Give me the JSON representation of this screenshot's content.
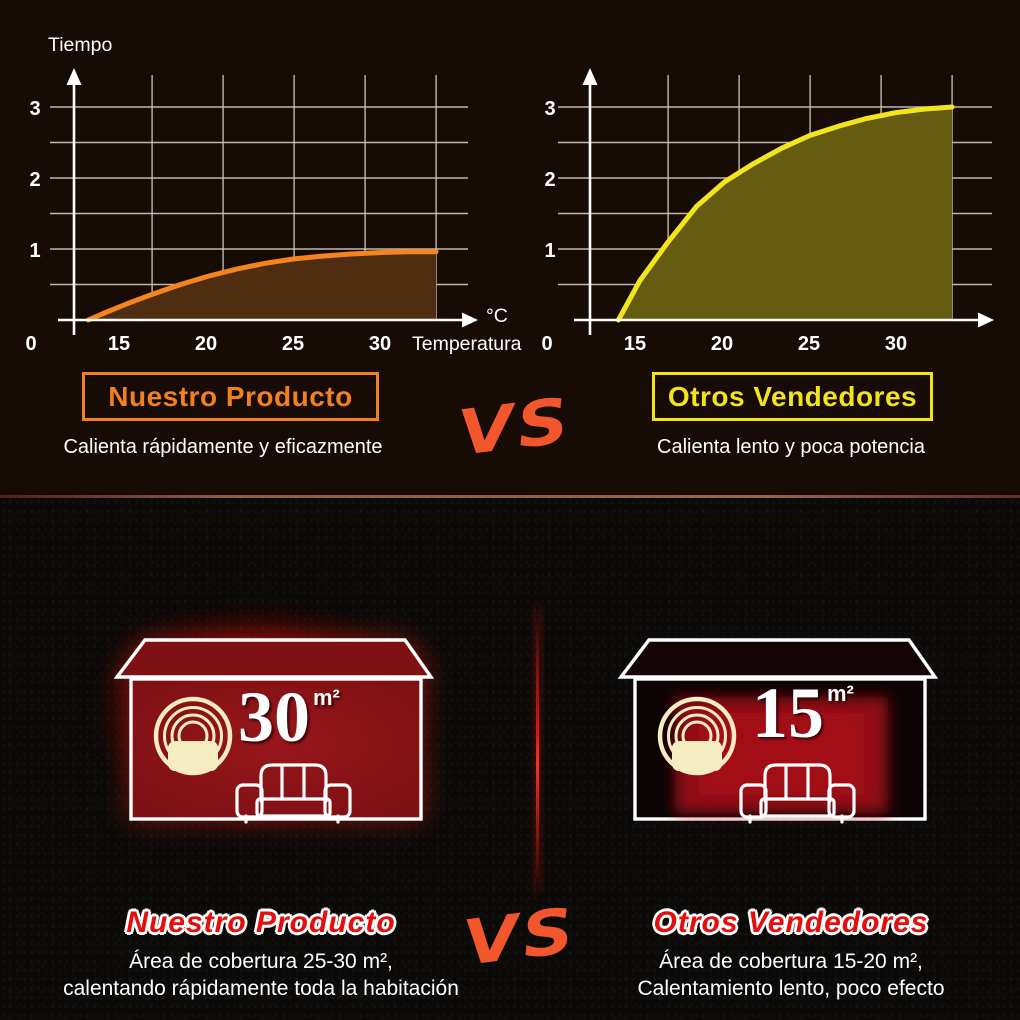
{
  "top_section": {
    "left_badge": {
      "label": "Nuestro Producto",
      "caption": "Calienta rápidamente y eficazmente"
    },
    "right_badge": {
      "label": "Otros Vendedores",
      "caption": "Calienta lento y poca potencia"
    },
    "vs_label": "VS"
  },
  "chart_data": [
    {
      "type": "area",
      "title": "Nuestro Producto",
      "ylabel": "Tiempo",
      "xlabel": "Temperatura",
      "x_unit": "°C",
      "x_ticks": [
        15,
        20,
        25,
        30
      ],
      "y_ticks": [
        1,
        2,
        3
      ],
      "origin_tick": "0",
      "xlim": [
        9.5,
        35
      ],
      "ylim": [
        0,
        3.5
      ],
      "grid": true,
      "legend": "none",
      "line_color": "#f5831e",
      "fill_color": "#4e2d11",
      "series": [
        {
          "name": "Nuestro Producto",
          "points": [
            [
              10.5,
              0
            ],
            [
              12,
              0.13
            ],
            [
              13.5,
              0.25
            ],
            [
              15,
              0.36
            ],
            [
              17,
              0.5
            ],
            [
              19,
              0.62
            ],
            [
              21,
              0.72
            ],
            [
              23,
              0.8
            ],
            [
              25,
              0.86
            ],
            [
              27,
              0.9
            ],
            [
              29,
              0.93
            ],
            [
              31,
              0.95
            ],
            [
              33,
              0.96
            ],
            [
              35,
              0.96
            ]
          ]
        }
      ]
    },
    {
      "type": "area",
      "title": "Otros Vendedores",
      "ylabel": "",
      "xlabel": "",
      "x_unit": "",
      "x_ticks": [
        15,
        20,
        25,
        30
      ],
      "y_ticks": [
        1,
        2,
        3
      ],
      "origin_tick": "0",
      "xlim": [
        9.5,
        35
      ],
      "ylim": [
        0,
        3.5
      ],
      "grid": true,
      "legend": "none",
      "line_color": "#f3e51d",
      "fill_color": "#665c11",
      "series": [
        {
          "name": "Otros Vendedores",
          "points": [
            [
              11.5,
              0
            ],
            [
              13,
              0.55
            ],
            [
              15,
              1.1
            ],
            [
              17,
              1.6
            ],
            [
              19,
              1.95
            ],
            [
              21,
              2.2
            ],
            [
              23,
              2.42
            ],
            [
              25,
              2.6
            ],
            [
              27,
              2.73
            ],
            [
              29,
              2.84
            ],
            [
              31,
              2.92
            ],
            [
              33,
              2.97
            ],
            [
              35,
              3.0
            ]
          ]
        }
      ]
    }
  ],
  "bottom_section": {
    "left_house": {
      "area_value": "30",
      "area_unit": "m²",
      "title": "Nuestro Producto",
      "caption_line1": "Área de cobertura 25-30 m²,",
      "caption_line2": "calentando rápidamente toda la habitación"
    },
    "right_house": {
      "area_value": "15",
      "area_unit": "m²",
      "title": "Otros Vendedores",
      "caption_line1": "Área de cobertura 15-20 m²,",
      "caption_line2": "Calentamiento lento, poco efecto"
    },
    "vs_label": "VS"
  },
  "colors": {
    "our_accent": "#f08020",
    "other_accent": "#f2e31d",
    "vs_orange": "#f1562d",
    "alert_red": "#e60d0d",
    "house_red": "#8c1217",
    "heater_cream": "#f6ecc2",
    "grid_gray": "#cdc7c1",
    "divider_brown": "#99624e"
  }
}
